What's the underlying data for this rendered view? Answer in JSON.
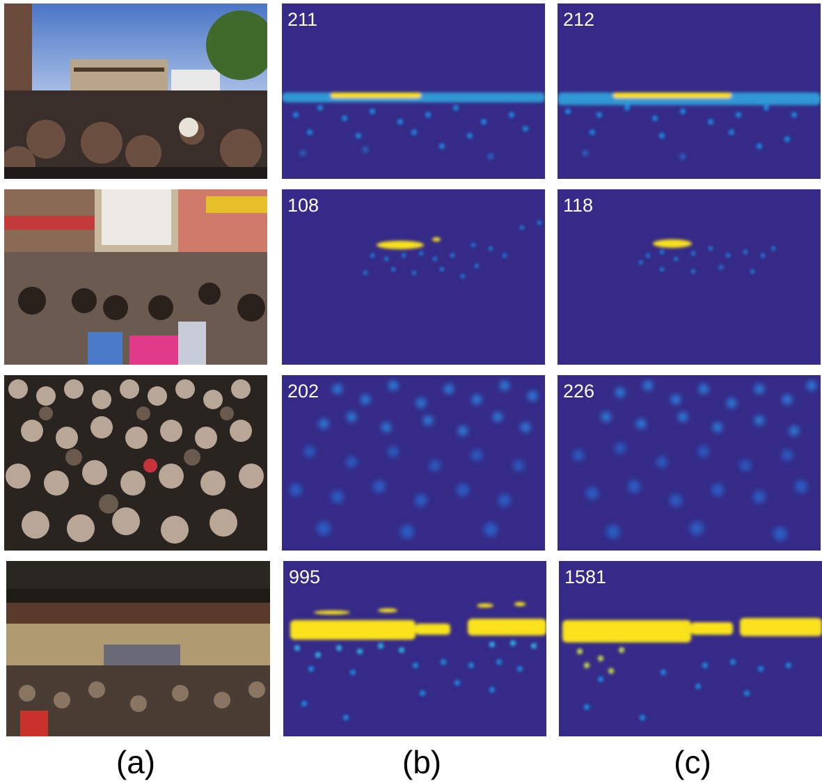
{
  "colors": {
    "map_bg": "#352a87",
    "blob_blue": "#1f8be0",
    "blob_cyan": "#2fb4e8",
    "blob_yellow": "#f9e21c",
    "label_text": "#ffffff",
    "caption_text": "#000000"
  },
  "rows": [
    {
      "photo": "street crowd under traffic light",
      "b_count": "211",
      "c_count": "212"
    },
    {
      "photo": "pedestrian shopping street",
      "b_count": "108",
      "c_count": "118"
    },
    {
      "photo": "dense audience of heads",
      "b_count": "202",
      "c_count": "226"
    },
    {
      "photo": "arena crowd",
      "b_count": "995",
      "c_count": "1581"
    }
  ],
  "captions": {
    "a": "(a)",
    "b": "(b)",
    "c": "(c)"
  }
}
